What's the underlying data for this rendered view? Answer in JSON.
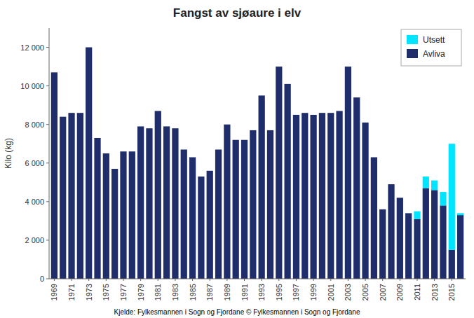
{
  "chart_data": {
    "type": "bar",
    "stacked": true,
    "title": "Fangst av sjøaure i elv",
    "ylabel": "Kilo (kg)",
    "source": "Kjelde: Fylkesmannen i Sogn og Fjordane  © Fylkesmannen i Sogn og Fjordane",
    "categories": [
      1969,
      null,
      1971,
      null,
      1973,
      null,
      1975,
      null,
      1977,
      null,
      1979,
      null,
      1981,
      null,
      1983,
      null,
      1985,
      null,
      1987,
      null,
      1989,
      null,
      1991,
      null,
      1993,
      null,
      1995,
      null,
      1997,
      null,
      1999,
      null,
      2001,
      null,
      2003,
      null,
      2005,
      null,
      2007,
      null,
      2009,
      null,
      2011,
      null,
      2013,
      null,
      2015,
      null
    ],
    "series": [
      {
        "name": "Avliva",
        "color": "#1F2E6B",
        "values": [
          10700,
          8400,
          8600,
          8600,
          12000,
          7300,
          6500,
          5700,
          6600,
          6600,
          7900,
          7800,
          8700,
          7900,
          7800,
          6700,
          6300,
          5300,
          5600,
          6700,
          8000,
          7200,
          7200,
          7700,
          9500,
          7700,
          11000,
          10100,
          8500,
          8600,
          8500,
          8600,
          8600,
          8700,
          11000,
          9400,
          8100,
          6300,
          3600,
          4900,
          4200,
          3400,
          3100,
          4700,
          4600,
          3800,
          1500,
          3300
        ]
      },
      {
        "name": "Utsett",
        "color": "#00E5FF",
        "values": [
          0,
          0,
          0,
          0,
          0,
          0,
          0,
          0,
          0,
          0,
          0,
          0,
          0,
          0,
          0,
          0,
          0,
          0,
          0,
          0,
          0,
          0,
          0,
          0,
          0,
          0,
          0,
          0,
          0,
          0,
          0,
          0,
          0,
          0,
          0,
          0,
          0,
          0,
          0,
          0,
          0,
          0,
          400,
          600,
          500,
          700,
          5500,
          100
        ]
      }
    ],
    "ylim": [
      0,
      13000
    ],
    "yticks": [
      0,
      {
        "value": 2000,
        "label": "2 000"
      },
      {
        "value": 4000,
        "label": "4 000"
      },
      {
        "value": 6000,
        "label": "6 000"
      },
      {
        "value": 8000,
        "label": "8 000"
      },
      {
        "value": 10000,
        "label": "10 000"
      },
      {
        "value": 12000,
        "label": "12 000"
      }
    ],
    "grid": false,
    "legend": "upper right"
  }
}
